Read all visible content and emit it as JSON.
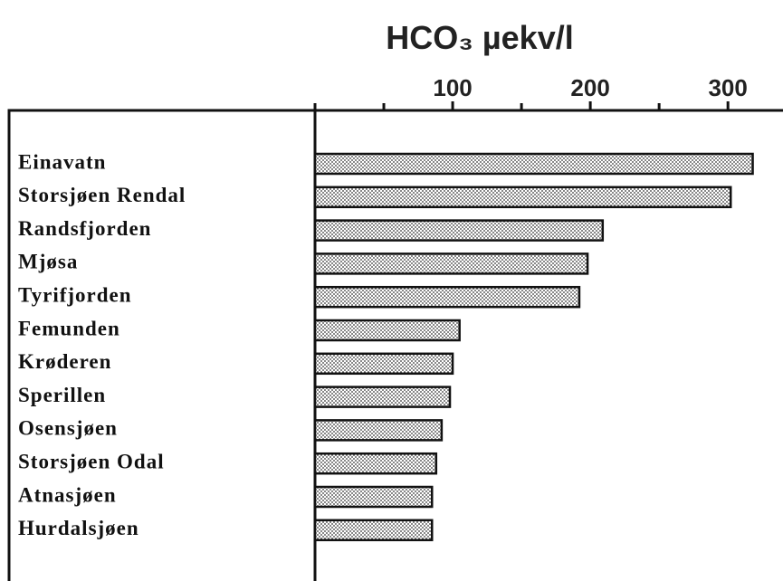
{
  "chart_data": {
    "type": "barh",
    "title": "HCO₃ µekv/l",
    "categories": [
      "Einavatn",
      "Storsjøen Rendal",
      "Randsfjorden",
      "Mjøsa",
      "Tyrifjorden",
      "Femunden",
      "Krøderen",
      "Sperillen",
      "Osensjøen",
      "Storsjøen Odal",
      "Atnasjøen",
      "Hurdalsjøen"
    ],
    "values": [
      318,
      302,
      209,
      198,
      192,
      105,
      100,
      98,
      92,
      88,
      85,
      85
    ],
    "color": "#ffffff",
    "xlim": [
      0,
      340
    ],
    "xticks": [
      100,
      200,
      300
    ],
    "minor_xticks": [
      0,
      50,
      150,
      250
    ]
  }
}
